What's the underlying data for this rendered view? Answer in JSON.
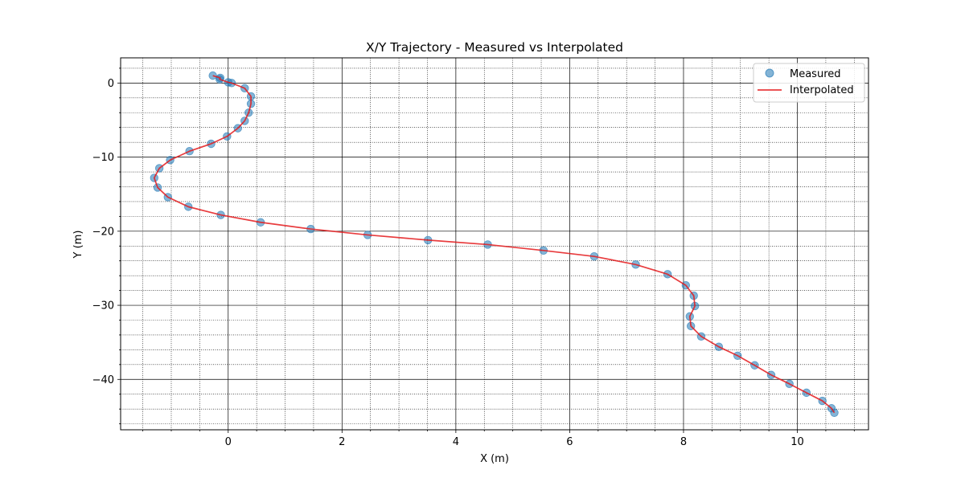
{
  "chart_data": {
    "type": "line",
    "title": "X/Y Trajectory - Measured vs Interpolated",
    "xlabel": "X (m)",
    "ylabel": "Y (m)",
    "xlim": [
      -1.89,
      11.25
    ],
    "ylim": [
      -46.8,
      3.4
    ],
    "xticks": [
      0,
      2,
      4,
      6,
      8,
      10
    ],
    "yticks": [
      0,
      -10,
      -20,
      -30,
      -40
    ],
    "xticklabels": [
      "0",
      "2",
      "4",
      "6",
      "8",
      "10"
    ],
    "yticklabels": [
      "0",
      "−10",
      "−20",
      "−30",
      "−40"
    ],
    "grid": "major solid, minor dotted",
    "legend_position": "top-right",
    "series": [
      {
        "name": "Measured",
        "kind": "scatter",
        "color": "#1f77b4",
        "x": [
          -0.27,
          -0.14,
          -0.15,
          0.0,
          0.06,
          0.29,
          0.4,
          0.4,
          0.36,
          0.29,
          0.17,
          -0.02,
          -0.3,
          -0.68,
          -1.02,
          -1.21,
          -1.3,
          -1.24,
          -1.06,
          -0.7,
          -0.13,
          0.57,
          1.45,
          2.45,
          3.51,
          4.56,
          5.54,
          6.43,
          7.16,
          7.72,
          8.04,
          8.18,
          8.2,
          8.11,
          8.13,
          8.31,
          8.62,
          8.95,
          9.25,
          9.54,
          9.86,
          10.16,
          10.44,
          10.6,
          10.65
        ],
        "y": [
          1.0,
          0.7,
          0.5,
          0.1,
          0.0,
          -0.7,
          -1.8,
          -2.8,
          -4.0,
          -5.1,
          -6.1,
          -7.2,
          -8.2,
          -9.2,
          -10.4,
          -11.5,
          -12.8,
          -14.1,
          -15.4,
          -16.7,
          -17.8,
          -18.8,
          -19.7,
          -20.5,
          -21.2,
          -21.8,
          -22.6,
          -23.4,
          -24.5,
          -25.8,
          -27.3,
          -28.7,
          -30.1,
          -31.5,
          -32.8,
          -34.2,
          -35.6,
          -36.8,
          -38.1,
          -39.4,
          -40.6,
          -41.8,
          -42.9,
          -43.9,
          -44.5
        ]
      },
      {
        "name": "Interpolated",
        "kind": "line",
        "color": "#e41a1c",
        "x": [
          -0.27,
          -0.14,
          -0.15,
          0.0,
          0.06,
          0.29,
          0.4,
          0.4,
          0.36,
          0.29,
          0.17,
          -0.02,
          -0.3,
          -0.68,
          -1.02,
          -1.21,
          -1.3,
          -1.24,
          -1.06,
          -0.7,
          -0.13,
          0.57,
          1.45,
          2.45,
          3.51,
          4.56,
          5.54,
          6.43,
          7.16,
          7.72,
          8.04,
          8.18,
          8.2,
          8.11,
          8.13,
          8.31,
          8.62,
          8.95,
          9.25,
          9.54,
          9.86,
          10.16,
          10.44,
          10.6,
          10.65
        ],
        "y": [
          1.0,
          0.7,
          0.5,
          0.1,
          0.0,
          -0.7,
          -1.8,
          -2.8,
          -4.0,
          -5.1,
          -6.1,
          -7.2,
          -8.2,
          -9.2,
          -10.4,
          -11.5,
          -12.8,
          -14.1,
          -15.4,
          -16.7,
          -17.8,
          -18.8,
          -19.7,
          -20.5,
          -21.2,
          -21.8,
          -22.6,
          -23.4,
          -24.5,
          -25.8,
          -27.3,
          -28.7,
          -30.1,
          -31.5,
          -32.8,
          -34.2,
          -35.6,
          -36.8,
          -38.1,
          -39.4,
          -40.6,
          -41.8,
          -42.9,
          -43.9,
          -44.5
        ]
      }
    ]
  }
}
